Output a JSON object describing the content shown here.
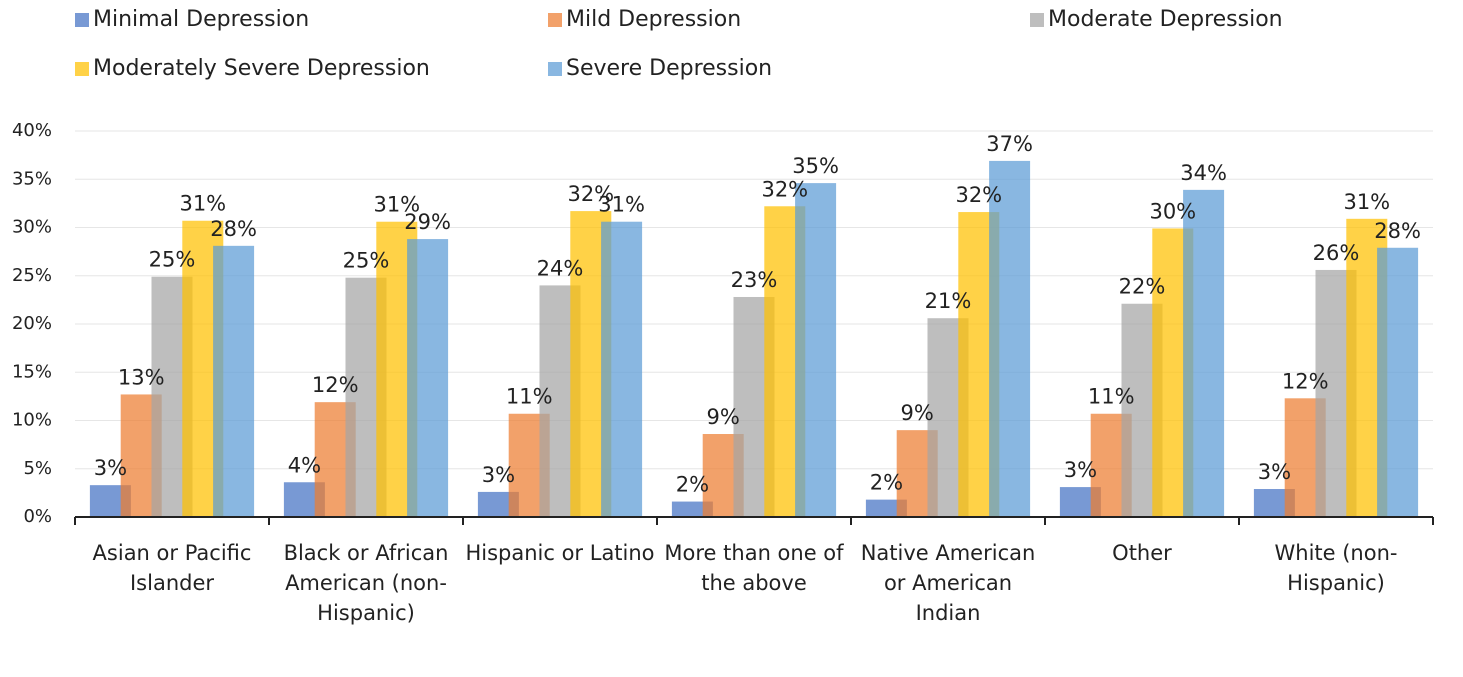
{
  "chart_data": {
    "type": "bar",
    "categories": [
      "Asian or Pacific Islander",
      "Black or African American (non-Hispanic)",
      "Hispanic or Latino",
      "More than one of the above",
      "Native American or American Indian",
      "Other",
      "White (non-Hispanic)"
    ],
    "series": [
      {
        "name": "Minimal Depression",
        "color": "#4472c4",
        "values": [
          3.3,
          3.6,
          2.6,
          1.6,
          1.8,
          3.1,
          2.9
        ],
        "value_labels": [
          "3%",
          "4%",
          "3%",
          "2%",
          "2%",
          "3%",
          "3%"
        ]
      },
      {
        "name": "Mild Depression",
        "color": "#ed7d31",
        "values": [
          12.7,
          11.9,
          10.7,
          8.6,
          9.0,
          10.7,
          12.3
        ],
        "value_labels": [
          "13%",
          "12%",
          "11%",
          "9%",
          "9%",
          "11%",
          "12%"
        ]
      },
      {
        "name": "Moderate Depression",
        "color": "#a5a5a5",
        "values": [
          24.9,
          24.8,
          24.0,
          22.8,
          20.6,
          22.1,
          25.6
        ],
        "value_labels": [
          "25%",
          "25%",
          "24%",
          "23%",
          "21%",
          "22%",
          "26%"
        ]
      },
      {
        "name": "Moderately Severe Depression",
        "color": "#ffc000",
        "values": [
          30.7,
          30.6,
          31.7,
          32.2,
          31.6,
          29.9,
          30.9
        ],
        "value_labels": [
          "31%",
          "31%",
          "32%",
          "32%",
          "32%",
          "30%",
          "31%"
        ]
      },
      {
        "name": "Severe Depression",
        "color": "#5b9bd5",
        "values": [
          28.1,
          28.8,
          30.6,
          34.6,
          36.9,
          33.9,
          27.9
        ],
        "value_labels": [
          "28%",
          "29%",
          "31%",
          "35%",
          "37%",
          "34%",
          "28%"
        ]
      }
    ],
    "ylim": [
      0,
      40
    ],
    "yticks": [
      {
        "value": 0,
        "label": "0%"
      },
      {
        "value": 5,
        "label": "5%"
      },
      {
        "value": 10,
        "label": "10%"
      },
      {
        "value": 15,
        "label": "15%"
      },
      {
        "value": 20,
        "label": "20%"
      },
      {
        "value": 25,
        "label": "25%"
      },
      {
        "value": 30,
        "label": "30%"
      },
      {
        "value": 35,
        "label": "35%"
      },
      {
        "value": 40,
        "label": "40%"
      }
    ],
    "grid": true
  }
}
